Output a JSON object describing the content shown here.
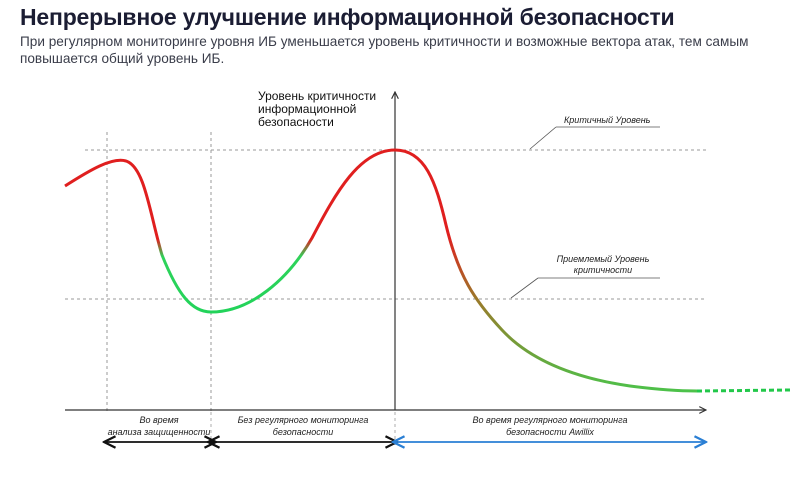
{
  "title": "Непрерывное улучшение информационной безопасности",
  "subtitle": "При регулярном мониторинге уровня ИБ уменьшается уровень критичности и возможные вектора атак, тем самым повышается общий уровень ИБ.",
  "diagram": {
    "y_axis_label_lines": [
      "Уровень критичности",
      "информационной",
      "безопасности"
    ],
    "critical_level_label": "Критичный Уровень",
    "acceptable_level_label_lines": [
      "Приемлемый Уровень",
      "критичности"
    ],
    "segments": [
      {
        "label_lines": [
          "Во время",
          "анализа защищенности"
        ]
      },
      {
        "label_lines": [
          "Без регулярного мониторинга",
          "безопасности"
        ]
      },
      {
        "label_lines": [
          "Во время регулярного мониторинга",
          "безопасности Awillix"
        ]
      }
    ],
    "colors": {
      "critical": "#e01f1f",
      "acceptable": "#22d35a",
      "monitoring_arrow": "#2a7fd4",
      "axis": "#333333",
      "dashed": "#999999"
    }
  }
}
